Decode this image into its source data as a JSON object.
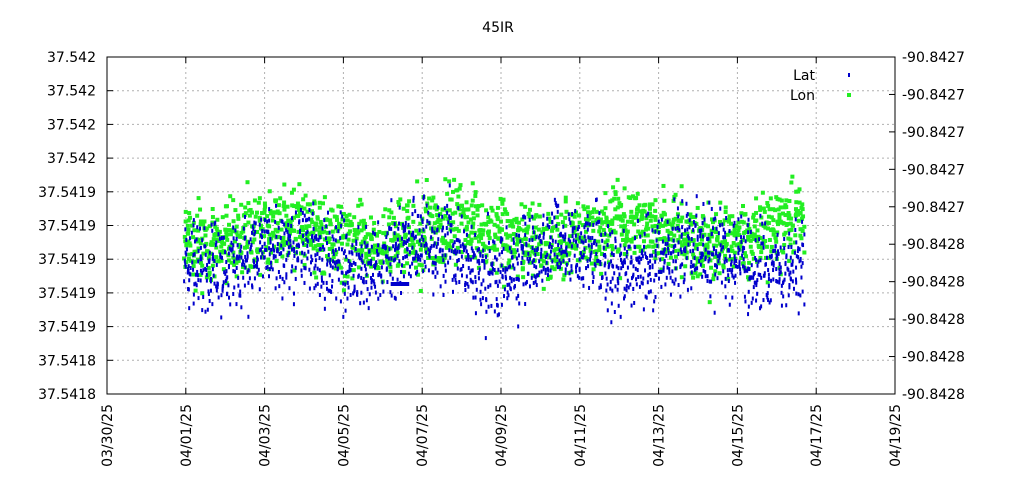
{
  "chart_data": {
    "type": "scatter",
    "title": "45IR",
    "x_axis": {
      "type": "date",
      "min": "2025-03-30",
      "max": "2025-04-19",
      "tick_labels": [
        "03/30/25",
        "04/01/25",
        "04/03/25",
        "04/05/25",
        "04/07/25",
        "04/09/25",
        "04/11/25",
        "04/13/25",
        "04/15/25",
        "04/17/25",
        "04/19/25"
      ],
      "grid": true
    },
    "y_left": {
      "tick_labels": [
        "37.542",
        "37.542",
        "37.542",
        "37.542",
        "37.5419",
        "37.5419",
        "37.5419",
        "37.5419",
        "37.5419",
        "37.5418",
        "37.5418"
      ],
      "grid": true
    },
    "y_right": {
      "tick_labels": [
        "-90.8427",
        "-90.8427",
        "-90.8427",
        "-90.8427",
        "-90.8427",
        "-90.8428",
        "-90.8428",
        "-90.8428",
        "-90.8428",
        "-90.8428"
      ]
    },
    "legend_placement": "top-right",
    "series": [
      {
        "name": "Lat",
        "axis": "left",
        "color": "#0000cc",
        "marker": "small-vertical-tick"
      },
      {
        "name": "Lon",
        "axis": "right",
        "color": "#22ee22",
        "marker": "square"
      }
    ]
  }
}
